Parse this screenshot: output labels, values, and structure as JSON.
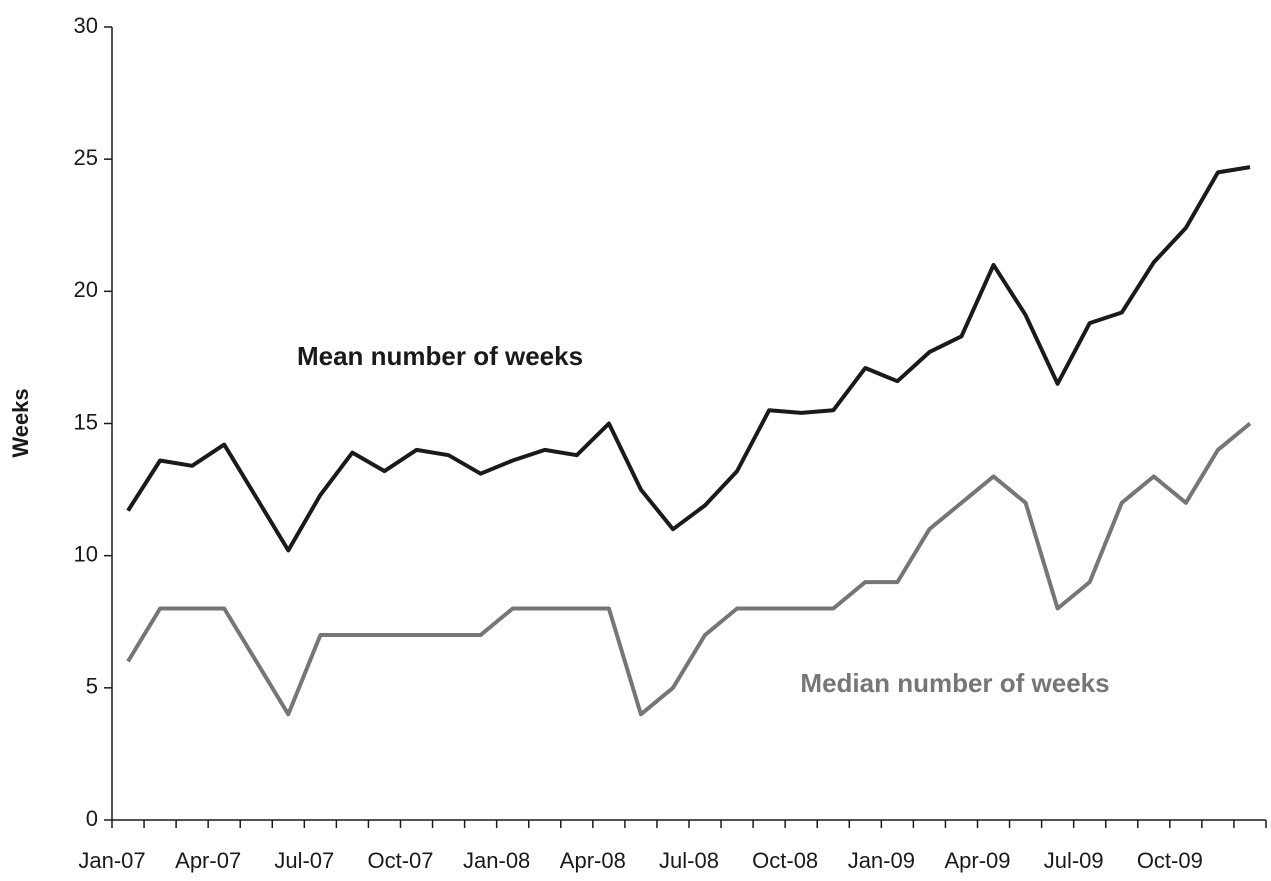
{
  "chart_data": {
    "type": "line",
    "y_label": "Weeks",
    "categories": [
      "Jan-07",
      null,
      null,
      "Apr-07",
      null,
      null,
      "Jul-07",
      null,
      null,
      "Oct-07",
      null,
      null,
      "Jan-08",
      null,
      null,
      "Apr-08",
      null,
      null,
      "Jul-08",
      null,
      null,
      "Oct-08",
      null,
      null,
      "Jan-09",
      null,
      null,
      "Apr-09",
      null,
      null,
      "Jul-09",
      null,
      null,
      "Oct-09",
      null,
      null
    ],
    "series": [
      {
        "name": "Mean number of weeks",
        "color": "#1a1a1a",
        "values": [
          11.7,
          13.6,
          13.4,
          14.2,
          12.2,
          10.2,
          12.3,
          13.9,
          13.2,
          14.0,
          13.8,
          13.1,
          13.6,
          14.0,
          13.8,
          15.0,
          12.5,
          11.0,
          11.9,
          13.2,
          15.5,
          15.4,
          15.5,
          17.1,
          16.6,
          17.7,
          18.3,
          21.0,
          19.1,
          16.5,
          18.8,
          19.2,
          21.1,
          22.4,
          24.5,
          24.7
        ]
      },
      {
        "name": "Median number of weeks",
        "color": "#767676",
        "values": [
          6,
          8,
          8,
          8,
          6,
          4,
          7,
          7,
          7,
          7,
          7,
          7,
          8,
          8,
          8,
          8,
          4,
          5,
          7,
          8,
          8,
          8,
          8,
          9,
          9,
          11,
          12,
          13,
          12,
          8,
          9,
          12,
          13,
          12,
          14,
          15
        ]
      }
    ],
    "ylim": [
      0,
      30
    ],
    "yticks": [
      0,
      5,
      10,
      15,
      20,
      25,
      30
    ],
    "grid": false
  }
}
